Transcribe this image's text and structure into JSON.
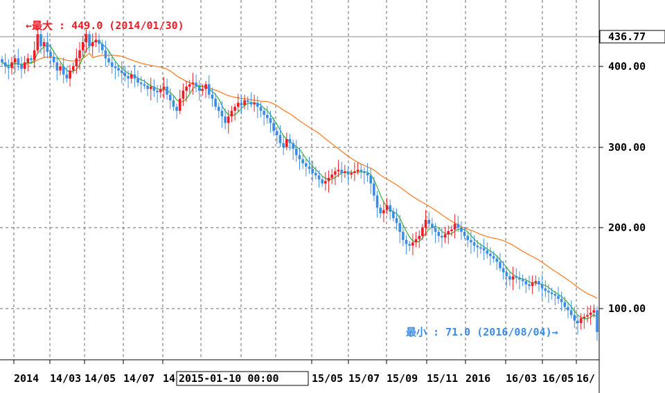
{
  "chart_data": {
    "type": "candlestick",
    "y_ticks": [
      "100.00",
      "200.00",
      "300.00",
      "400.00"
    ],
    "ylim": [
      26,
      493
    ],
    "current_price": "436.77",
    "x_ticks": [
      "2014",
      "14/03",
      "14/05",
      "14/07",
      "14",
      "15/05",
      "15/07",
      "15/09",
      "15/11",
      "2016",
      "16/03",
      "16/05",
      "16/"
    ],
    "cursor_label": "2015-01-10   00:00",
    "grid": true,
    "max_annotation": {
      "text": "←最大 : 449.0 (2014/01/30)",
      "value": 449.0,
      "date": "2014/01/30",
      "color": "#ee1c25"
    },
    "min_annotation": {
      "text": "最小 : 71.0 (2016/08/04)→",
      "value": 71.0,
      "date": "2016/08/04",
      "color": "#3c8ce6"
    },
    "colors": {
      "up": "#ee1c25",
      "down": "#3c8ce6",
      "ma_short": "#22aa22",
      "ma_long": "#ff7f27",
      "grid": "#6a6a6a"
    },
    "series": [
      {
        "type": "candles",
        "closes": [
          405,
          400,
          398,
          405,
          410,
          402,
          397,
          405,
          410,
          408,
          420,
          440,
          425,
          430,
          418,
          412,
          405,
          395,
          400,
          390,
          385,
          395,
          400,
          410,
          420,
          430,
          440,
          425,
          430,
          433,
          428,
          420,
          410,
          405,
          400,
          398,
          395,
          392,
          388,
          385,
          390,
          385,
          380,
          378,
          376,
          372,
          375,
          370,
          368,
          372,
          375,
          365,
          358,
          350,
          345,
          360,
          370,
          375,
          378,
          380,
          375,
          370,
          372,
          378,
          365,
          360,
          350,
          345,
          338,
          330,
          338,
          345,
          350,
          355,
          352,
          358,
          356,
          353,
          355,
          350,
          345,
          340,
          336,
          330,
          320,
          315,
          305,
          300,
          310,
          305,
          298,
          290,
          285,
          280,
          276,
          273,
          268,
          265,
          260,
          255,
          258,
          262,
          266,
          270,
          272,
          268,
          270,
          266,
          268,
          270,
          272,
          270,
          268,
          265,
          255,
          240,
          225,
          218,
          222,
          228,
          220,
          212,
          206,
          195,
          185,
          180,
          178,
          182,
          186,
          190,
          200,
          210,
          205,
          200,
          195,
          190,
          188,
          192,
          196,
          198,
          205,
          200,
          195,
          190,
          185,
          182,
          178,
          176,
          175,
          172,
          168,
          165,
          162,
          158,
          150,
          145,
          140,
          136,
          140,
          138,
          136,
          134,
          130,
          128,
          132,
          134,
          130,
          125,
          122,
          120,
          118,
          116,
          112,
          108,
          102,
          98,
          92,
          85,
          82,
          88,
          90,
          92,
          95,
          98,
          71
        ]
      },
      {
        "name": "",
        "type": "ma_short"
      },
      {
        "name": "",
        "type": "ma_long"
      }
    ]
  }
}
